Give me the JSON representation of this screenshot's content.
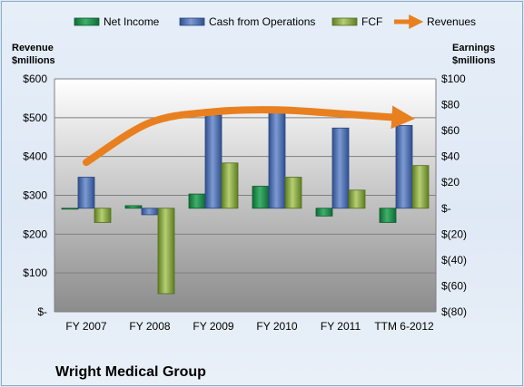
{
  "chart_data": {
    "type": "bar",
    "title": "",
    "footer_title": "Wright Medical Group",
    "categories": [
      "FY 2007",
      "FY 2008",
      "FY 2009",
      "FY 2010",
      "FY 2011",
      "TTM 6-2012"
    ],
    "left_axis": {
      "label_line1": "Revenue",
      "label_line2": "$millions",
      "ylim": [
        0,
        600
      ],
      "tick_labels": [
        "$-",
        "$100",
        "$200",
        "$300",
        "$400",
        "$500",
        "$600"
      ]
    },
    "right_axis": {
      "label_line1": "Earnings",
      "label_line2": "$millions",
      "ylim": [
        -80,
        100
      ],
      "tick_labels": [
        "$(80)",
        "$(60)",
        "$(40)",
        "$(20)",
        "$-",
        "$20",
        "$40",
        "$60",
        "$80",
        "$100"
      ]
    },
    "series": [
      {
        "name": "Net Income",
        "axis": "right",
        "kind": "bar",
        "color": "#1e8a4c",
        "values": [
          0,
          2,
          11,
          17,
          -6,
          -11
        ]
      },
      {
        "name": "Cash from Operations",
        "axis": "right",
        "kind": "bar",
        "color": "#4a6fb5",
        "values": [
          24,
          -5,
          72,
          74,
          62,
          64
        ]
      },
      {
        "name": "FCF",
        "axis": "right",
        "kind": "bar",
        "color": "#8fb04a",
        "values": [
          -11,
          -66,
          35,
          24,
          14,
          33
        ]
      },
      {
        "name": "Revenues",
        "axis": "left",
        "kind": "line",
        "color": "#e8801f",
        "values": [
          385,
          487,
          515,
          520,
          510,
          500
        ]
      }
    ],
    "grid": true,
    "legend_position": "top"
  }
}
